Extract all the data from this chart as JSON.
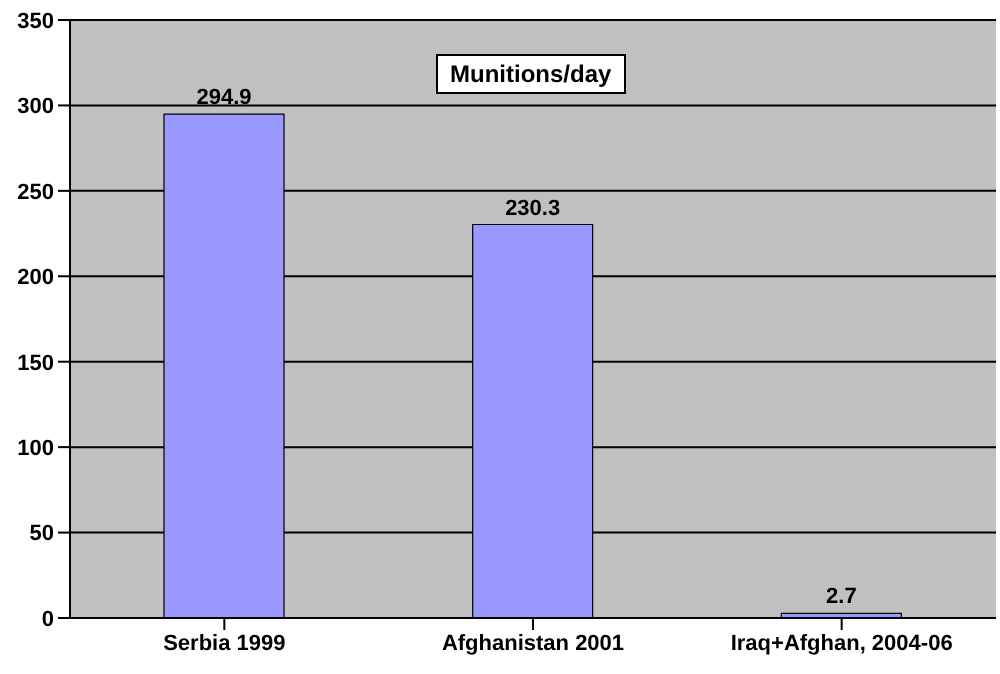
{
  "chart_data": {
    "type": "bar",
    "title": "Munitions/day",
    "categories": [
      "Serbia 1999",
      "Afghanistan 2001",
      "Iraq+Afghan, 2004-06"
    ],
    "values": [
      294.9,
      230.3,
      2.7
    ],
    "color": "#9999ff",
    "ylim": [
      0,
      350
    ],
    "yticks": [
      0,
      50,
      100,
      150,
      200,
      250,
      300,
      350
    ],
    "grid": "y",
    "data_labels": true
  }
}
